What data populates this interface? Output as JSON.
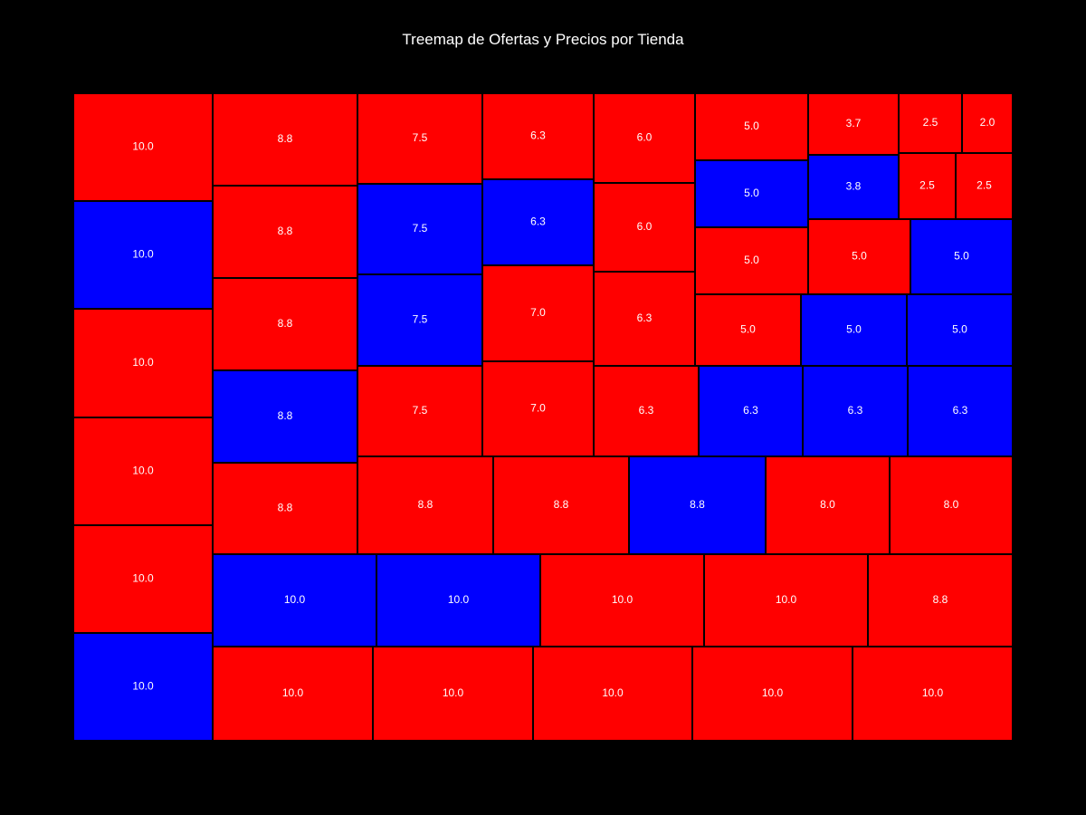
{
  "chart_data": {
    "type": "treemap",
    "title": "Treemap de Ofertas y Precios por Tienda",
    "colors": {
      "red": "#ff0000",
      "blue": "#0000ff",
      "border": "#000000",
      "label": "#ffffff",
      "background": "#000000"
    },
    "cells": [
      {
        "label": "10.0",
        "value": 10.0,
        "color": "red"
      },
      {
        "label": "10.0",
        "value": 10.0,
        "color": "blue"
      },
      {
        "label": "10.0",
        "value": 10.0,
        "color": "red"
      },
      {
        "label": "10.0",
        "value": 10.0,
        "color": "red"
      },
      {
        "label": "10.0",
        "value": 10.0,
        "color": "red"
      },
      {
        "label": "10.0",
        "value": 10.0,
        "color": "blue"
      },
      {
        "label": "8.8",
        "value": 8.8,
        "color": "red"
      },
      {
        "label": "8.8",
        "value": 8.8,
        "color": "red"
      },
      {
        "label": "8.8",
        "value": 8.8,
        "color": "red"
      },
      {
        "label": "8.8",
        "value": 8.8,
        "color": "blue"
      },
      {
        "label": "8.8",
        "value": 8.8,
        "color": "red"
      },
      {
        "label": "7.5",
        "value": 7.5,
        "color": "red"
      },
      {
        "label": "7.5",
        "value": 7.5,
        "color": "blue"
      },
      {
        "label": "7.5",
        "value": 7.5,
        "color": "blue"
      },
      {
        "label": "7.5",
        "value": 7.5,
        "color": "red"
      },
      {
        "label": "6.3",
        "value": 6.3,
        "color": "red"
      },
      {
        "label": "6.3",
        "value": 6.3,
        "color": "blue"
      },
      {
        "label": "7.0",
        "value": 7.0,
        "color": "red"
      },
      {
        "label": "7.0",
        "value": 7.0,
        "color": "red"
      },
      {
        "label": "6.0",
        "value": 6.0,
        "color": "red"
      },
      {
        "label": "6.0",
        "value": 6.0,
        "color": "red"
      },
      {
        "label": "6.3",
        "value": 6.3,
        "color": "red"
      },
      {
        "label": "6.3",
        "value": 6.3,
        "color": "red"
      },
      {
        "label": "5.0",
        "value": 5.0,
        "color": "red"
      },
      {
        "label": "5.0",
        "value": 5.0,
        "color": "blue"
      },
      {
        "label": "5.0",
        "value": 5.0,
        "color": "red"
      },
      {
        "label": "3.7",
        "value": 3.7,
        "color": "red"
      },
      {
        "label": "3.8",
        "value": 3.8,
        "color": "blue"
      },
      {
        "label": "2.5",
        "value": 2.5,
        "color": "red"
      },
      {
        "label": "2.0",
        "value": 2.0,
        "color": "red"
      },
      {
        "label": "2.5",
        "value": 2.5,
        "color": "red"
      },
      {
        "label": "2.5",
        "value": 2.5,
        "color": "red"
      },
      {
        "label": "5.0",
        "value": 5.0,
        "color": "red"
      },
      {
        "label": "5.0",
        "value": 5.0,
        "color": "blue"
      },
      {
        "label": "5.0",
        "value": 5.0,
        "color": "red"
      },
      {
        "label": "5.0",
        "value": 5.0,
        "color": "blue"
      },
      {
        "label": "5.0",
        "value": 5.0,
        "color": "blue"
      },
      {
        "label": "6.3",
        "value": 6.3,
        "color": "blue"
      },
      {
        "label": "6.3",
        "value": 6.3,
        "color": "blue"
      },
      {
        "label": "6.3",
        "value": 6.3,
        "color": "blue"
      },
      {
        "label": "8.8",
        "value": 8.8,
        "color": "red"
      },
      {
        "label": "8.8",
        "value": 8.8,
        "color": "red"
      },
      {
        "label": "8.8",
        "value": 8.8,
        "color": "blue"
      },
      {
        "label": "8.0",
        "value": 8.0,
        "color": "red"
      },
      {
        "label": "8.0",
        "value": 8.0,
        "color": "red"
      },
      {
        "label": "10.0",
        "value": 10.0,
        "color": "blue"
      },
      {
        "label": "10.0",
        "value": 10.0,
        "color": "blue"
      },
      {
        "label": "10.0",
        "value": 10.0,
        "color": "red"
      },
      {
        "label": "10.0",
        "value": 10.0,
        "color": "red"
      },
      {
        "label": "8.8",
        "value": 8.8,
        "color": "red"
      },
      {
        "label": "10.0",
        "value": 10.0,
        "color": "red"
      },
      {
        "label": "10.0",
        "value": 10.0,
        "color": "red"
      },
      {
        "label": "10.0",
        "value": 10.0,
        "color": "red"
      },
      {
        "label": "10.0",
        "value": 10.0,
        "color": "red"
      },
      {
        "label": "10.0",
        "value": 10.0,
        "color": "red"
      }
    ]
  }
}
